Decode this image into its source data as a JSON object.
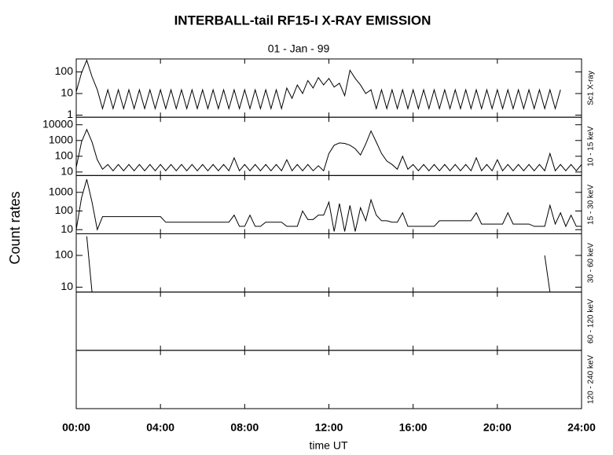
{
  "chart_data": {
    "type": "line",
    "title": "INTERBALL-tail  RF15-I   X-RAY  EMISSION",
    "subtitle": "01 - Jan - 99",
    "ylabel": "Count  rates",
    "xlabel": "time UT",
    "log_y": true,
    "color": "#000000",
    "xlim": [
      0,
      24
    ],
    "xticks": [
      {
        "value": 0,
        "label": "00:00"
      },
      {
        "value": 4,
        "label": "04:00"
      },
      {
        "value": 8,
        "label": "08:00"
      },
      {
        "value": 12,
        "label": "12:00"
      },
      {
        "value": 16,
        "label": "16:00"
      },
      {
        "value": 20,
        "label": "20:00"
      },
      {
        "value": 24,
        "label": "24:00"
      }
    ],
    "x": [
      0,
      0.25,
      0.5,
      0.75,
      1,
      1.25,
      1.5,
      1.75,
      2,
      2.25,
      2.5,
      2.75,
      3,
      3.25,
      3.5,
      3.75,
      4,
      4.25,
      4.5,
      4.75,
      5,
      5.25,
      5.5,
      5.75,
      6,
      6.25,
      6.5,
      6.75,
      7,
      7.25,
      7.5,
      7.75,
      8,
      8.25,
      8.5,
      8.75,
      9,
      9.25,
      9.5,
      9.75,
      10,
      10.25,
      10.5,
      10.75,
      11,
      11.25,
      11.5,
      11.75,
      12,
      12.25,
      12.5,
      12.75,
      13,
      13.25,
      13.5,
      13.75,
      14,
      14.25,
      14.5,
      14.75,
      15,
      15.25,
      15.5,
      15.75,
      16,
      16.25,
      16.5,
      16.75,
      17,
      17.25,
      17.5,
      17.75,
      18,
      18.25,
      18.5,
      18.75,
      19,
      19.25,
      19.5,
      19.75,
      20,
      20.25,
      20.5,
      20.75,
      21,
      21.25,
      21.5,
      21.75,
      22,
      22.25,
      22.5,
      22.75,
      23,
      23.25,
      23.5,
      23.75,
      24
    ],
    "panels": [
      {
        "label": "Sc1 X-ray",
        "ylim": [
          0.8,
          400
        ],
        "yticks": [
          1,
          10,
          100
        ],
        "values": [
          12,
          90,
          350,
          60,
          15,
          2,
          15,
          2,
          15,
          2,
          15,
          2,
          15,
          2,
          15,
          2,
          15,
          2,
          15,
          2,
          15,
          2,
          15,
          2,
          15,
          2,
          15,
          2,
          15,
          2,
          15,
          2,
          15,
          2,
          15,
          2,
          15,
          2,
          15,
          2,
          18,
          6,
          25,
          10,
          40,
          18,
          55,
          25,
          50,
          20,
          30,
          8,
          120,
          50,
          25,
          10,
          15,
          2,
          15,
          2,
          15,
          2,
          15,
          2,
          15,
          2,
          15,
          2,
          15,
          2,
          15,
          2,
          15,
          2,
          15,
          2,
          15,
          2,
          15,
          2,
          15,
          2,
          15,
          2,
          15,
          2,
          15,
          2,
          15,
          2,
          15,
          2,
          15
        ]
      },
      {
        "label": "10 - 15 keV",
        "ylim": [
          6,
          30000
        ],
        "yticks": [
          10,
          100,
          1000,
          10000
        ],
        "values": [
          20,
          800,
          5000,
          800,
          60,
          15,
          30,
          12,
          30,
          12,
          30,
          12,
          30,
          12,
          30,
          12,
          30,
          12,
          30,
          12,
          30,
          12,
          30,
          12,
          30,
          12,
          30,
          12,
          30,
          12,
          80,
          12,
          30,
          12,
          30,
          12,
          30,
          12,
          30,
          12,
          60,
          12,
          30,
          12,
          30,
          12,
          25,
          12,
          150,
          500,
          700,
          650,
          500,
          300,
          120,
          600,
          4000,
          800,
          150,
          50,
          30,
          15,
          100,
          15,
          30,
          12,
          30,
          12,
          30,
          12,
          30,
          12,
          30,
          12,
          30,
          12,
          80,
          12,
          30,
          12,
          60,
          12,
          30,
          12,
          30,
          12,
          30,
          12,
          30,
          12,
          150,
          12,
          30,
          12,
          30,
          12,
          30
        ]
      },
      {
        "label": "15 - 30 keV",
        "ylim": [
          6,
          8000
        ],
        "yticks": [
          10,
          100,
          1000
        ],
        "values": [
          10,
          500,
          5000,
          300,
          10,
          50,
          50,
          50,
          50,
          50,
          50,
          50,
          50,
          50,
          50,
          50,
          50,
          25,
          25,
          25,
          25,
          25,
          25,
          25,
          25,
          25,
          25,
          25,
          25,
          25,
          60,
          15,
          15,
          60,
          15,
          15,
          25,
          25,
          25,
          25,
          15,
          15,
          15,
          100,
          35,
          35,
          60,
          60,
          300,
          8,
          250,
          8,
          200,
          8,
          150,
          30,
          400,
          60,
          30,
          30,
          25,
          25,
          80,
          15,
          15,
          15,
          15,
          15,
          15,
          30,
          30,
          30,
          30,
          30,
          30,
          30,
          80,
          20,
          20,
          20,
          20,
          20,
          80,
          20,
          20,
          20,
          20,
          15,
          15,
          15,
          200,
          20,
          80,
          15,
          60,
          15,
          15
        ]
      },
      {
        "label": "30 - 60 keV",
        "ylim": [
          7,
          480
        ],
        "yticks": [
          10,
          100
        ],
        "values": [
          null,
          null,
          400,
          7,
          null,
          null,
          null,
          null,
          null,
          null,
          null,
          null,
          null,
          null,
          null,
          null,
          null,
          null,
          null,
          null,
          null,
          null,
          null,
          null,
          null,
          null,
          null,
          null,
          null,
          null,
          null,
          null,
          null,
          null,
          null,
          null,
          null,
          null,
          null,
          null,
          null,
          null,
          null,
          null,
          null,
          null,
          null,
          null,
          null,
          null,
          null,
          null,
          null,
          null,
          null,
          null,
          null,
          null,
          null,
          null,
          null,
          null,
          null,
          null,
          null,
          null,
          null,
          null,
          null,
          null,
          null,
          null,
          null,
          null,
          null,
          null,
          null,
          null,
          null,
          null,
          null,
          null,
          null,
          null,
          null,
          null,
          null,
          null,
          null,
          100,
          7,
          null,
          null,
          null,
          null,
          null,
          null
        ]
      },
      {
        "label": "60 - 120 keV"
      },
      {
        "label": "120 - 240 keV"
      }
    ]
  }
}
